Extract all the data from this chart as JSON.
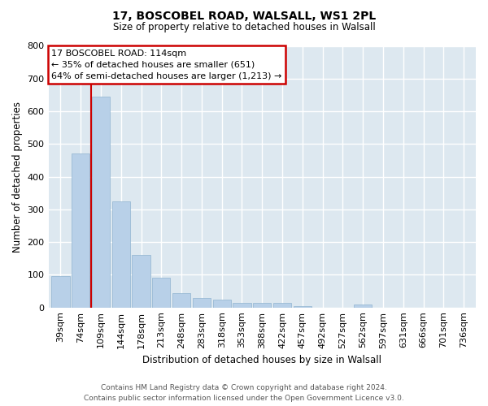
{
  "title": "17, BOSCOBEL ROAD, WALSALL, WS1 2PL",
  "subtitle": "Size of property relative to detached houses in Walsall",
  "xlabel": "Distribution of detached houses by size in Walsall",
  "ylabel": "Number of detached properties",
  "bar_labels": [
    "39sqm",
    "74sqm",
    "109sqm",
    "144sqm",
    "178sqm",
    "213sqm",
    "248sqm",
    "283sqm",
    "318sqm",
    "353sqm",
    "388sqm",
    "422sqm",
    "457sqm",
    "492sqm",
    "527sqm",
    "562sqm",
    "597sqm",
    "631sqm",
    "666sqm",
    "701sqm",
    "736sqm"
  ],
  "bar_values": [
    95,
    470,
    645,
    325,
    160,
    92,
    43,
    28,
    23,
    14,
    15,
    13,
    5,
    0,
    0,
    8,
    0,
    0,
    0,
    0,
    0
  ],
  "bar_color": "#b8d0e8",
  "bar_edge_color": "#90b4d0",
  "highlight_bar_index": 2,
  "highlight_color": "#cc0000",
  "ylim": [
    0,
    800
  ],
  "yticks": [
    0,
    100,
    200,
    300,
    400,
    500,
    600,
    700,
    800
  ],
  "annotation_title": "17 BOSCOBEL ROAD: 114sqm",
  "annotation_line1": "← 35% of detached houses are smaller (651)",
  "annotation_line2": "64% of semi-detached houses are larger (1,213) →",
  "footer_line1": "Contains HM Land Registry data © Crown copyright and database right 2024.",
  "footer_line2": "Contains public sector information licensed under the Open Government Licence v3.0.",
  "bg_color": "#ffffff",
  "plot_bg_color": "#dde8f0",
  "grid_color": "#ffffff"
}
